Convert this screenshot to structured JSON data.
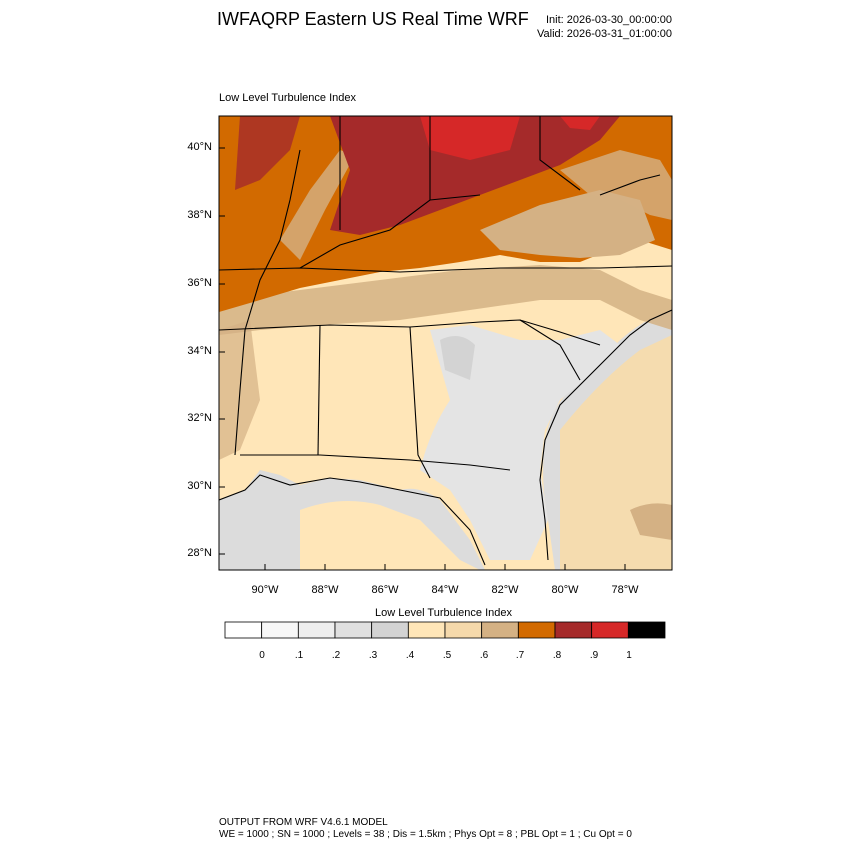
{
  "header": {
    "title": "IWFAQRP Eastern US Real Time WRF",
    "init": "Init: 2026-03-30_00:00:00",
    "valid": "Valid: 2026-03-31_01:00:00"
  },
  "map": {
    "subtitle": "Low Level Turbulence Index",
    "lat_labels": [
      "40°N",
      "38°N",
      "36°N",
      "34°N",
      "32°N",
      "30°N",
      "28°N"
    ],
    "lon_labels": [
      "90°W",
      "88°W",
      "86°W",
      "84°W",
      "82°W",
      "80°W",
      "78°W"
    ]
  },
  "colorbar": {
    "title": "Low Level Turbulence Index",
    "labels": [
      "0",
      ".1",
      ".2",
      ".3",
      ".4",
      ".5",
      ".6",
      ".7",
      ".8",
      ".9",
      "1"
    ],
    "colors": [
      "#ffffff",
      "#f7f7f7",
      "#eeeeee",
      "#e0e0e0",
      "#d3d3d3",
      "#ffe6b8",
      "#f5d9ab",
      "#d4b184",
      "#d26a00",
      "#a52a2a",
      "#d62828",
      "#000000"
    ]
  },
  "footer": {
    "line1": "OUTPUT FROM WRF V4.6.1 MODEL",
    "line2": "WE = 1000 ; SN = 1000 ; Levels = 38 ; Dis = 1.5km ; Phys Opt = 8 ; PBL Opt = 1 ; Cu Opt = 0"
  }
}
